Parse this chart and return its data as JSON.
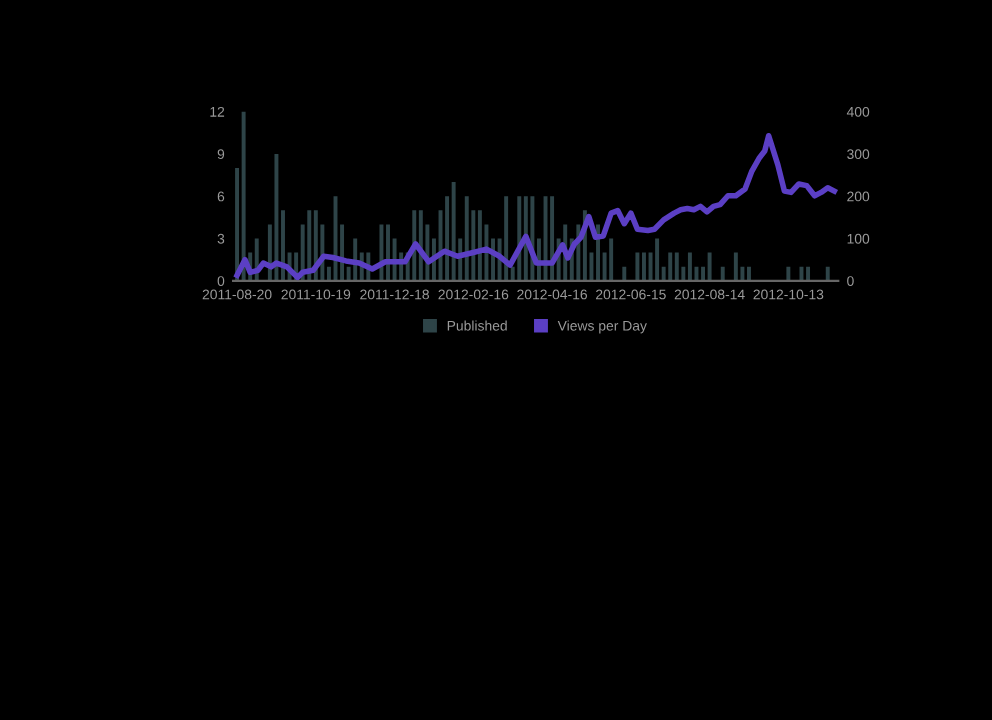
{
  "chart_data": {
    "type": "bar",
    "legend": "bottom",
    "grid": false,
    "xlim": [
      "2011-08-17",
      "2012-11-20"
    ],
    "xticks": [
      "2011-08-20",
      "2011-10-19",
      "2011-12-18",
      "2012-02-16",
      "2012-04-16",
      "2012-06-15",
      "2012-08-14",
      "2012-10-13"
    ],
    "ylim": [
      0,
      12
    ],
    "yticks": [
      0,
      3,
      6,
      9,
      12
    ],
    "y2lim": [
      0,
      400
    ],
    "y2ticks": [
      0,
      100,
      200,
      300,
      400
    ],
    "series": [
      {
        "name": "Published",
        "color": "#2e4448",
        "x": [
          "2011-08-20",
          "2011-08-25",
          "2011-08-30",
          "2011-09-04",
          "2011-09-14",
          "2011-09-19",
          "2011-09-24",
          "2011-09-29",
          "2011-10-04",
          "2011-10-09",
          "2011-10-14",
          "2011-10-19",
          "2011-10-24",
          "2011-10-29",
          "2011-11-03",
          "2011-11-08",
          "2011-11-13",
          "2011-11-18",
          "2011-11-23",
          "2011-11-28",
          "2011-12-08",
          "2011-12-13",
          "2011-12-18",
          "2011-12-23",
          "2011-12-28",
          "2012-01-02",
          "2012-01-07",
          "2012-01-12",
          "2012-01-17",
          "2012-01-22",
          "2012-01-27",
          "2012-02-01",
          "2012-02-06",
          "2012-02-11",
          "2012-02-16",
          "2012-02-21",
          "2012-02-26",
          "2012-03-02",
          "2012-03-07",
          "2012-03-12",
          "2012-03-17",
          "2012-03-22",
          "2012-03-27",
          "2012-04-01",
          "2012-04-06",
          "2012-04-11",
          "2012-04-16",
          "2012-04-21",
          "2012-04-26",
          "2012-05-01",
          "2012-05-06",
          "2012-05-11",
          "2012-05-16",
          "2012-05-21",
          "2012-05-26",
          "2012-05-31",
          "2012-06-10",
          "2012-06-20",
          "2012-06-25",
          "2012-06-30",
          "2012-07-05",
          "2012-07-10",
          "2012-07-15",
          "2012-07-20",
          "2012-07-25",
          "2012-07-30",
          "2012-08-04",
          "2012-08-09",
          "2012-08-14",
          "2012-08-24",
          "2012-09-03",
          "2012-09-08",
          "2012-09-13",
          "2012-10-13",
          "2012-10-23",
          "2012-10-28",
          "2012-11-12"
        ],
        "values": [
          8,
          12,
          2,
          3,
          4,
          9,
          5,
          2,
          2,
          4,
          5,
          5,
          4,
          1,
          6,
          4,
          1,
          3,
          2,
          2,
          4,
          4,
          3,
          2,
          2,
          5,
          5,
          4,
          3,
          5,
          6,
          7,
          3,
          6,
          5,
          5,
          4,
          3,
          3,
          6,
          1,
          6,
          6,
          6,
          3,
          6,
          6,
          3,
          4,
          3,
          4,
          5,
          2,
          4,
          2,
          3,
          1,
          2,
          2,
          2,
          3,
          1,
          2,
          2,
          1,
          2,
          1,
          1,
          2,
          1,
          2,
          1,
          1,
          1,
          1,
          1,
          1
        ]
      },
      {
        "name": "Views per Day",
        "type": "line",
        "axis": "y2",
        "color": "#5b3fc4",
        "marker": "none",
        "line_style": "solid",
        "x": [
          "2011-08-20",
          "2011-08-26",
          "2011-08-30",
          "2011-09-05",
          "2011-09-09",
          "2011-09-15",
          "2011-09-19",
          "2011-09-27",
          "2011-10-05",
          "2011-10-09",
          "2011-10-17",
          "2011-10-25",
          "2011-11-01",
          "2011-11-11",
          "2011-11-21",
          "2011-12-01",
          "2011-12-11",
          "2011-12-26",
          "2012-01-03",
          "2012-01-13",
          "2012-01-25",
          "2012-02-04",
          "2012-02-16",
          "2012-02-26",
          "2012-03-07",
          "2012-03-15",
          "2012-03-27",
          "2012-04-04",
          "2012-04-16",
          "2012-04-24",
          "2012-04-28",
          "2012-05-03",
          "2012-05-08",
          "2012-05-14",
          "2012-05-19",
          "2012-05-25",
          "2012-05-31",
          "2012-06-05",
          "2012-06-10",
          "2012-06-15",
          "2012-06-20",
          "2012-06-28",
          "2012-07-03",
          "2012-07-10",
          "2012-07-18",
          "2012-07-23",
          "2012-07-28",
          "2012-08-02",
          "2012-08-07",
          "2012-08-12",
          "2012-08-17",
          "2012-08-22",
          "2012-08-28",
          "2012-09-03",
          "2012-09-10",
          "2012-09-15",
          "2012-09-21",
          "2012-09-25",
          "2012-09-28",
          "2012-10-05",
          "2012-10-10",
          "2012-10-15",
          "2012-10-21",
          "2012-10-27",
          "2012-11-02",
          "2012-11-07",
          "2012-11-12",
          "2012-11-17"
        ],
        "values": [
          13,
          50,
          20,
          25,
          42,
          33,
          42,
          33,
          8,
          20,
          25,
          58,
          55,
          47,
          42,
          28,
          45,
          45,
          87,
          45,
          70,
          58,
          67,
          75,
          58,
          37,
          105,
          42,
          42,
          85,
          54,
          87,
          103,
          152,
          103,
          106,
          160,
          166,
          135,
          160,
          122,
          119,
          122,
          144,
          160,
          168,
          171,
          168,
          176,
          163,
          176,
          180,
          201,
          201,
          217,
          258,
          291,
          307,
          343,
          274,
          212,
          209,
          229,
          225,
          201,
          209,
          220,
          212
        ]
      }
    ]
  }
}
